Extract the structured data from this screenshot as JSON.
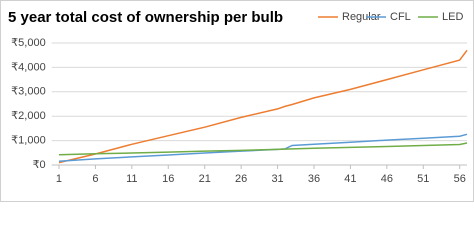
{
  "chart_data": {
    "type": "line",
    "title": "5 year total cost of ownership per bulb",
    "x": [
      1,
      6,
      11,
      16,
      21,
      26,
      31,
      32,
      33,
      36,
      41,
      46,
      51,
      56,
      57
    ],
    "series": [
      {
        "name": "Regular",
        "color": "#ed7d31",
        "values": [
          100,
          450,
          850,
          1200,
          1550,
          1950,
          2300,
          2400,
          2480,
          2750,
          3100,
          3500,
          3900,
          4300,
          4700
        ]
      },
      {
        "name": "CFL",
        "color": "#5b9bd5",
        "values": [
          150,
          250,
          330,
          410,
          490,
          570,
          640,
          660,
          800,
          850,
          930,
          1020,
          1100,
          1180,
          1260
        ]
      },
      {
        "name": "LED",
        "color": "#70ad47",
        "values": [
          420,
          460,
          490,
          530,
          570,
          600,
          640,
          650,
          660,
          690,
          720,
          760,
          800,
          840,
          900
        ]
      }
    ],
    "xlim": [
      0,
      57
    ],
    "xticks": [
      1,
      6,
      11,
      16,
      21,
      26,
      31,
      36,
      41,
      46,
      51,
      56
    ],
    "ylim": [
      0,
      5000
    ],
    "yticks": [
      {
        "value": 0,
        "label": "₹0"
      },
      {
        "value": 1000,
        "label": "₹1,000"
      },
      {
        "value": 2000,
        "label": "₹2,000"
      },
      {
        "value": 3000,
        "label": "₹3,000"
      },
      {
        "value": 4000,
        "label": "₹4,000"
      },
      {
        "value": 5000,
        "label": "₹5,000"
      }
    ],
    "grid": true,
    "legend": "top-right"
  }
}
